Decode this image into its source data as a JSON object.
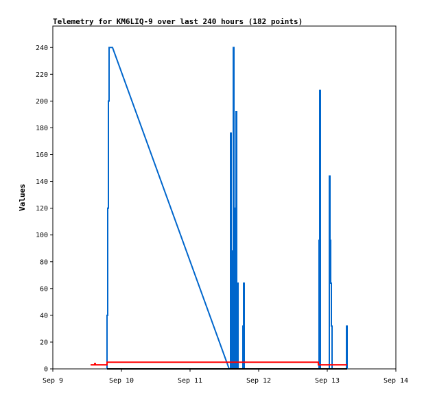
{
  "chart_data": {
    "type": "line",
    "title": "Telemetry for KM6LIQ-9 over last 240 hours (182 points)",
    "ylabel": "Values",
    "xlabel": "",
    "x_unit": "days (Sep)",
    "xlim": [
      9,
      14
    ],
    "ylim": [
      0,
      256
    ],
    "x_ticks": [
      9,
      10,
      11,
      12,
      13,
      14
    ],
    "x_tick_labels": [
      "Sep 9",
      "Sep 10",
      "Sep 11",
      "Sep 12",
      "Sep 13",
      "Sep 14"
    ],
    "y_ticks": [
      0,
      20,
      40,
      60,
      80,
      100,
      120,
      140,
      160,
      180,
      200,
      220,
      240
    ],
    "grid": false,
    "legend": "none",
    "series": [
      {
        "color": "#0066cc",
        "points": [
          [
            9.79,
            0
          ],
          [
            9.79,
            40
          ],
          [
            9.8,
            40
          ],
          [
            9.8,
            120
          ],
          [
            9.81,
            120
          ],
          [
            9.81,
            200
          ],
          [
            9.82,
            200
          ],
          [
            9.82,
            240
          ],
          [
            9.87,
            240
          ],
          [
            11.57,
            0
          ],
          [
            11.59,
            0
          ],
          [
            11.59,
            176
          ],
          [
            11.6,
            176
          ],
          [
            11.6,
            0
          ],
          [
            11.61,
            0
          ],
          [
            11.61,
            88
          ],
          [
            11.62,
            88
          ],
          [
            11.62,
            0
          ],
          [
            11.63,
            0
          ],
          [
            11.63,
            240
          ],
          [
            11.64,
            240
          ],
          [
            11.64,
            0
          ],
          [
            11.65,
            0
          ],
          [
            11.65,
            120
          ],
          [
            11.655,
            120
          ],
          [
            11.655,
            0
          ],
          [
            11.67,
            0
          ],
          [
            11.67,
            192
          ],
          [
            11.68,
            192
          ],
          [
            11.68,
            0
          ],
          [
            11.69,
            0
          ],
          [
            11.69,
            64
          ],
          [
            11.7,
            64
          ],
          [
            11.7,
            0
          ],
          [
            11.77,
            0
          ],
          [
            11.77,
            32
          ],
          [
            11.78,
            32
          ],
          [
            11.78,
            64
          ],
          [
            11.79,
            64
          ],
          [
            11.79,
            0
          ],
          [
            12.88,
            0
          ],
          [
            12.88,
            96
          ],
          [
            12.89,
            96
          ],
          [
            12.89,
            208
          ],
          [
            12.9,
            208
          ],
          [
            12.9,
            0
          ],
          [
            13.03,
            0
          ],
          [
            13.03,
            144
          ],
          [
            13.04,
            144
          ],
          [
            13.04,
            96
          ],
          [
            13.05,
            96
          ],
          [
            13.05,
            64
          ],
          [
            13.06,
            64
          ],
          [
            13.06,
            32
          ],
          [
            13.07,
            32
          ],
          [
            13.07,
            0
          ],
          [
            13.28,
            0
          ],
          [
            13.28,
            32
          ],
          [
            13.29,
            32
          ],
          [
            13.29,
            0
          ]
        ]
      },
      {
        "color": "#ff0000",
        "points": [
          [
            9.55,
            3
          ],
          [
            9.61,
            3
          ],
          [
            9.61,
            4
          ],
          [
            9.62,
            4
          ],
          [
            9.62,
            3
          ],
          [
            9.79,
            3
          ],
          [
            9.79,
            5
          ],
          [
            12.87,
            5
          ],
          [
            12.87,
            3
          ],
          [
            13.29,
            3
          ]
        ]
      },
      {
        "color": "#000000",
        "points": [
          [
            9.79,
            0
          ],
          [
            13.29,
            0
          ]
        ]
      }
    ]
  }
}
